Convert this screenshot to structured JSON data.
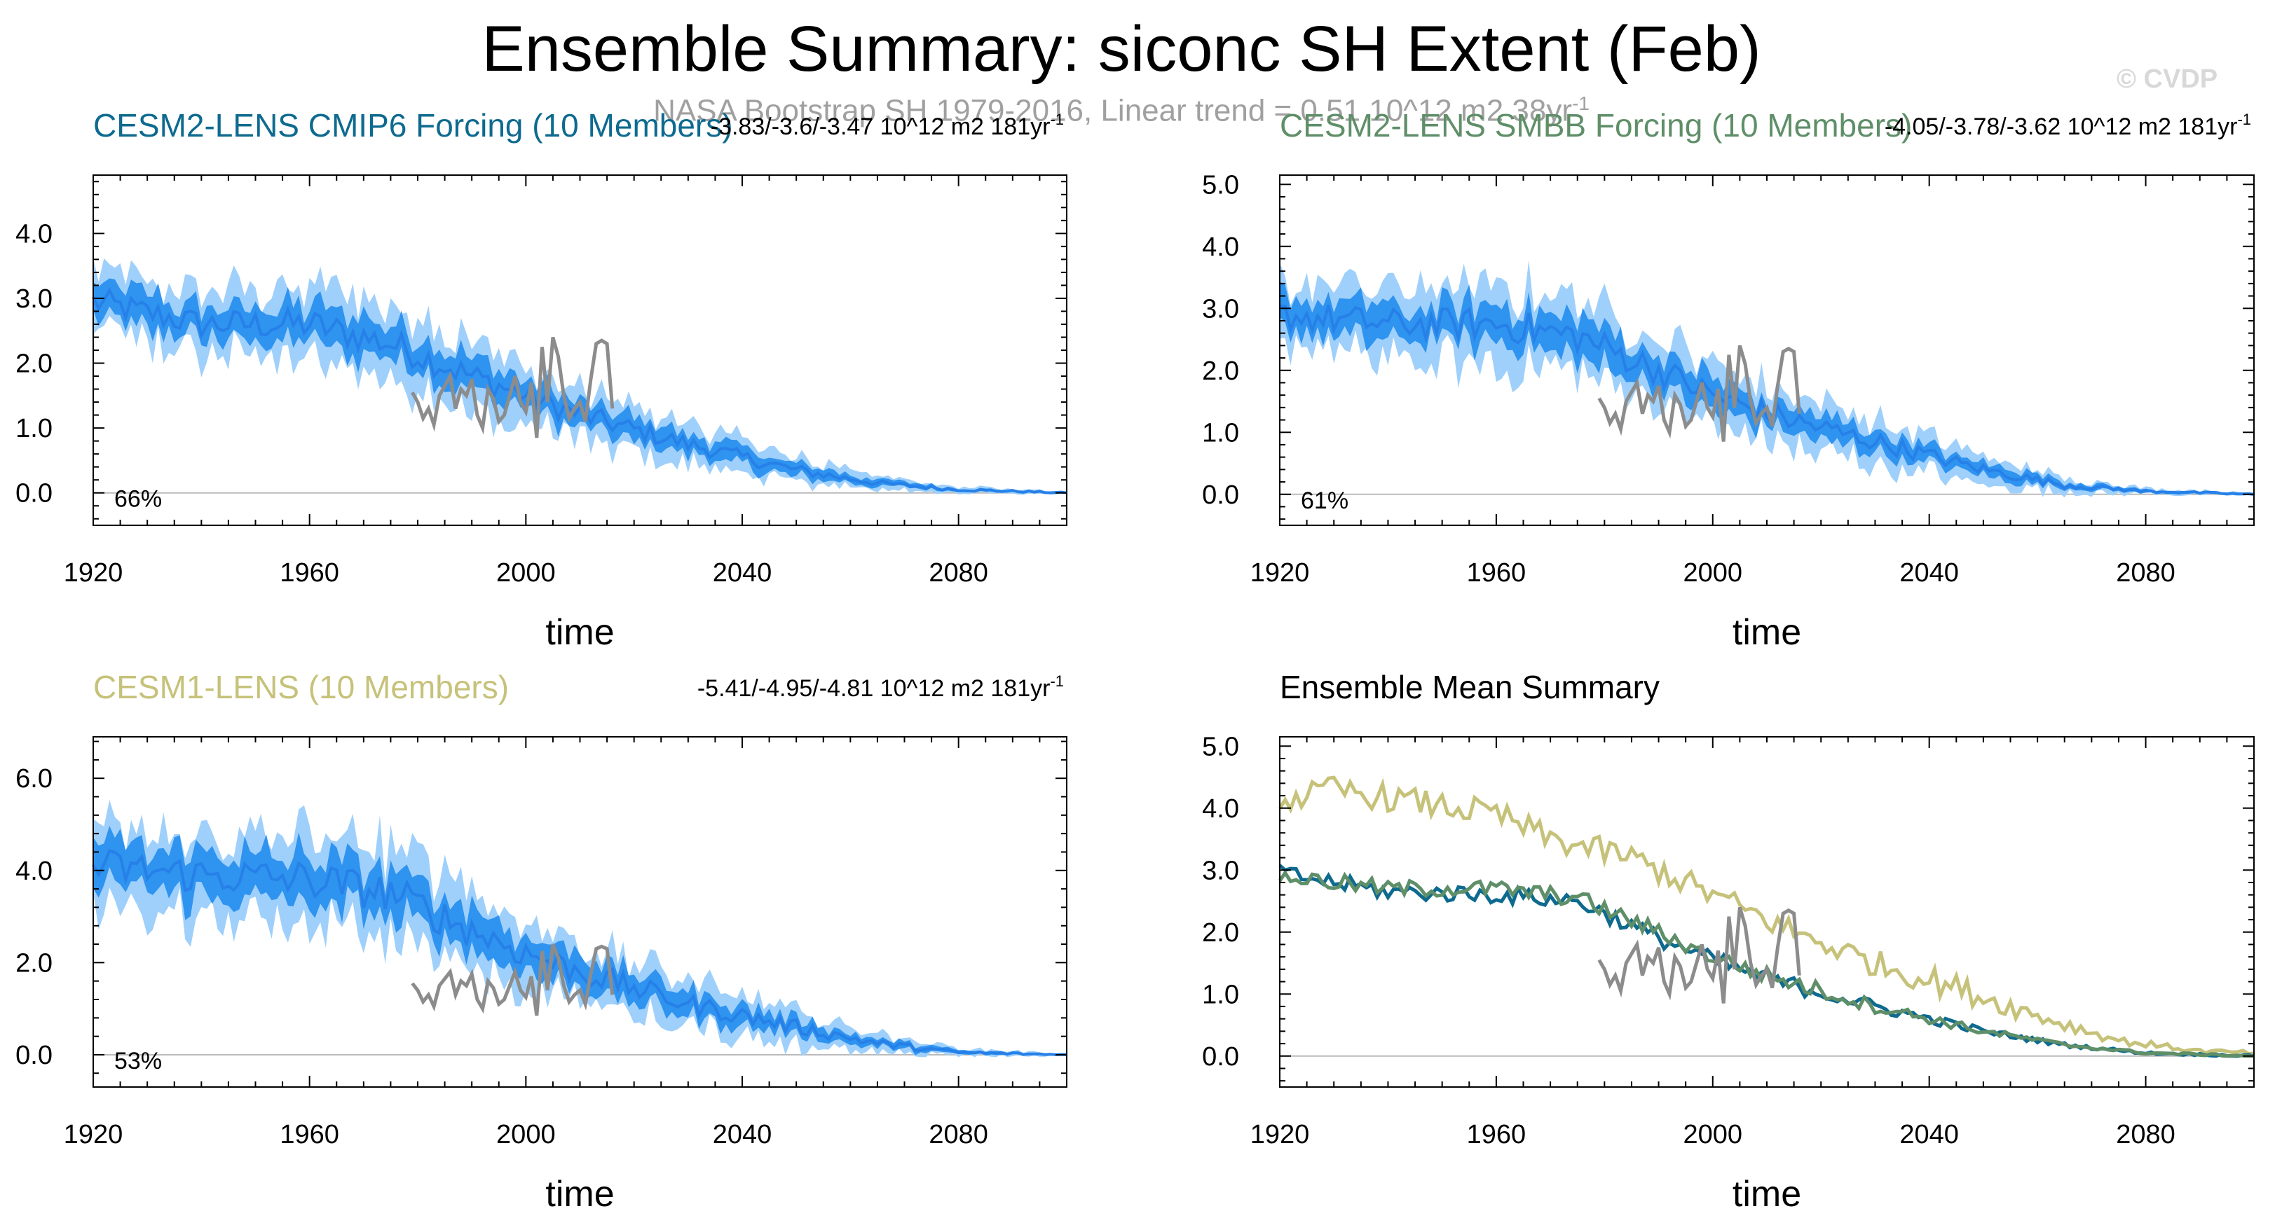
{
  "title": "Ensemble Summary: siconc SH Extent (Feb)",
  "watermark": "© CVDP",
  "observation_subtitle": "NASA Bootstrap SH 1979-2016, Linear trend = 0.51 10^12 m2 38yr",
  "observation_subtitle_exp": "-1",
  "colors": {
    "cmip6_title": "#0e6a8f",
    "smbb_title": "#5f8f68",
    "cesm1_title": "#c6c27a",
    "shade_outer": "#9fd0fb",
    "shade_inner": "#2f93f0",
    "ens_mean_line": "#2680e8",
    "obs_line": "#8c8c8c",
    "mean_cmip6": "#0e6a8f",
    "mean_smbb": "#5f8f68",
    "mean_cesm1": "#c6c27a",
    "zero_line": "#bbbbbb"
  },
  "chart_data": [
    {
      "type": "area",
      "panel": "cmip6",
      "title": "CESM2-LENS CMIP6 Forcing (10 Members)",
      "trend_text": "-3.83/-3.6/-3.47 10^12 m2 181yr",
      "trend_exp": "-1",
      "percent_label": "66%",
      "xlabel": "time",
      "ylabel": "",
      "xlim": [
        1920,
        2100
      ],
      "ylim": [
        -0.5,
        4.9
      ],
      "xticks": [
        1920,
        1960,
        2000,
        2040,
        2080
      ],
      "yticks": [
        0.0,
        1.0,
        2.0,
        3.0,
        4.0
      ],
      "ytick_labels": [
        "0.0",
        "1.0",
        "2.0",
        "3.0",
        "4.0"
      ],
      "ensemble_mean_anchors": {
        "x": [
          1920,
          1940,
          1960,
          1975,
          1990,
          2000,
          2010,
          2030,
          2050,
          2065,
          2080,
          2100
        ],
        "y": [
          2.95,
          2.6,
          2.6,
          2.3,
          1.8,
          1.5,
          1.2,
          0.75,
          0.35,
          0.15,
          0.05,
          0.0
        ]
      },
      "spread_outer_anchors": [
        0.5,
        0.5,
        0.55,
        0.55,
        0.5,
        0.45,
        0.4,
        0.3,
        0.2,
        0.1,
        0.05,
        0.02
      ],
      "spread_inner_anchors": [
        0.25,
        0.25,
        0.27,
        0.27,
        0.25,
        0.22,
        0.2,
        0.15,
        0.1,
        0.05,
        0.025,
        0.01
      ],
      "obs": {
        "name": "NASA Bootstrap",
        "x": [
          1979,
          1980,
          1981,
          1982,
          1983,
          1984,
          1985,
          1986,
          1987,
          1988,
          1989,
          1990,
          1991,
          1992,
          1993,
          1994,
          1995,
          1996,
          1997,
          1998,
          1999,
          2000,
          2001,
          2002,
          2003,
          2004,
          2005,
          2006,
          2007,
          2008,
          2009,
          2010,
          2011,
          2012,
          2013,
          2014,
          2015,
          2016
        ],
        "y": [
          1.55,
          1.4,
          1.15,
          1.3,
          1.05,
          1.5,
          1.65,
          1.8,
          1.3,
          1.6,
          1.5,
          1.75,
          1.2,
          1.0,
          1.6,
          1.45,
          1.1,
          1.2,
          1.5,
          1.8,
          1.4,
          1.25,
          1.7,
          0.85,
          2.25,
          1.4,
          2.4,
          2.1,
          1.5,
          1.15,
          1.3,
          1.4,
          1.1,
          1.75,
          2.3,
          2.35,
          2.3,
          1.3
        ]
      }
    },
    {
      "type": "area",
      "panel": "smbb",
      "title": "CESM2-LENS SMBB Forcing (10 Members)",
      "trend_text": "-4.05/-3.78/-3.62 10^12 m2 181yr",
      "trend_exp": "-1",
      "percent_label": "61%",
      "xlabel": "time",
      "ylabel": "",
      "xlim": [
        1920,
        2100
      ],
      "ylim": [
        -0.5,
        5.15
      ],
      "xticks": [
        1920,
        1960,
        2000,
        2040,
        2080
      ],
      "yticks": [
        0.0,
        1.0,
        2.0,
        3.0,
        4.0,
        5.0
      ],
      "ytick_labels": [
        "0.0",
        "1.0",
        "2.0",
        "3.0",
        "4.0",
        "5.0"
      ],
      "ensemble_mean_anchors": {
        "x": [
          1920,
          1940,
          1960,
          1975,
          1990,
          2000,
          2010,
          2030,
          2050,
          2065,
          2080,
          2100
        ],
        "y": [
          2.9,
          2.75,
          2.75,
          2.55,
          2.0,
          1.6,
          1.3,
          0.85,
          0.4,
          0.15,
          0.05,
          0.0
        ]
      },
      "spread_outer_anchors": [
        0.55,
        0.55,
        0.6,
        0.6,
        0.55,
        0.5,
        0.45,
        0.35,
        0.22,
        0.12,
        0.05,
        0.02
      ],
      "spread_inner_anchors": [
        0.27,
        0.27,
        0.3,
        0.3,
        0.27,
        0.25,
        0.22,
        0.17,
        0.11,
        0.06,
        0.025,
        0.01
      ],
      "obs": {
        "name": "NASA Bootstrap",
        "x": [
          1979,
          1980,
          1981,
          1982,
          1983,
          1984,
          1985,
          1986,
          1987,
          1988,
          1989,
          1990,
          1991,
          1992,
          1993,
          1994,
          1995,
          1996,
          1997,
          1998,
          1999,
          2000,
          2001,
          2002,
          2003,
          2004,
          2005,
          2006,
          2007,
          2008,
          2009,
          2010,
          2011,
          2012,
          2013,
          2014,
          2015,
          2016
        ],
        "y": [
          1.55,
          1.4,
          1.15,
          1.3,
          1.05,
          1.5,
          1.65,
          1.8,
          1.3,
          1.6,
          1.5,
          1.75,
          1.2,
          1.0,
          1.6,
          1.45,
          1.1,
          1.2,
          1.5,
          1.8,
          1.4,
          1.25,
          1.7,
          0.85,
          2.25,
          1.4,
          2.4,
          2.1,
          1.5,
          1.15,
          1.3,
          1.4,
          1.1,
          1.75,
          2.3,
          2.35,
          2.3,
          1.3
        ]
      }
    },
    {
      "type": "area",
      "panel": "cesm1",
      "title": "CESM1-LENS (10 Members)",
      "trend_text": "-5.41/-4.95/-4.81 10^12 m2 181yr",
      "trend_exp": "-1",
      "percent_label": "53%",
      "xlabel": "time",
      "ylabel": "",
      "xlim": [
        1920,
        2100
      ],
      "ylim": [
        -0.7,
        6.9
      ],
      "xticks": [
        1920,
        1960,
        2000,
        2040,
        2080
      ],
      "yticks": [
        0.0,
        2.0,
        4.0,
        6.0
      ],
      "ytick_labels": [
        "0.0",
        "2.0",
        "4.0",
        "6.0"
      ],
      "ensemble_mean_anchors": {
        "x": [
          1920,
          1940,
          1960,
          1975,
          1990,
          2000,
          2010,
          2030,
          2050,
          2065,
          2080,
          2100
        ],
        "y": [
          4.1,
          3.9,
          3.8,
          3.5,
          2.7,
          2.2,
          1.8,
          1.1,
          0.6,
          0.25,
          0.05,
          0.0
        ]
      },
      "spread_outer_anchors": [
        0.9,
        0.9,
        0.95,
        0.95,
        0.85,
        0.75,
        0.65,
        0.5,
        0.35,
        0.2,
        0.08,
        0.03
      ],
      "spread_inner_anchors": [
        0.45,
        0.45,
        0.47,
        0.47,
        0.42,
        0.37,
        0.32,
        0.25,
        0.17,
        0.1,
        0.04,
        0.015
      ],
      "obs": {
        "name": "NASA Bootstrap",
        "x": [
          1979,
          1980,
          1981,
          1982,
          1983,
          1984,
          1985,
          1986,
          1987,
          1988,
          1989,
          1990,
          1991,
          1992,
          1993,
          1994,
          1995,
          1996,
          1997,
          1998,
          1999,
          2000,
          2001,
          2002,
          2003,
          2004,
          2005,
          2006,
          2007,
          2008,
          2009,
          2010,
          2011,
          2012,
          2013,
          2014,
          2015,
          2016
        ],
        "y": [
          1.55,
          1.4,
          1.15,
          1.3,
          1.05,
          1.5,
          1.65,
          1.8,
          1.3,
          1.6,
          1.5,
          1.75,
          1.2,
          1.0,
          1.6,
          1.45,
          1.1,
          1.2,
          1.5,
          1.8,
          1.4,
          1.25,
          1.7,
          0.85,
          2.25,
          1.4,
          2.4,
          2.1,
          1.5,
          1.15,
          1.3,
          1.4,
          1.1,
          1.75,
          2.3,
          2.35,
          2.3,
          1.3
        ]
      }
    },
    {
      "type": "line",
      "panel": "mean_summary",
      "title": "Ensemble Mean Summary",
      "xlabel": "time",
      "ylabel": "",
      "xlim": [
        1920,
        2100
      ],
      "ylim": [
        -0.5,
        5.15
      ],
      "xticks": [
        1920,
        1960,
        2000,
        2040,
        2080
      ],
      "yticks": [
        0.0,
        1.0,
        2.0,
        3.0,
        4.0,
        5.0
      ],
      "ytick_labels": [
        "0.0",
        "1.0",
        "2.0",
        "3.0",
        "4.0",
        "5.0"
      ],
      "series": [
        {
          "name": "CESM1-LENS",
          "color_key": "mean_cesm1",
          "anchors": {
            "x": [
              1920,
              1930,
              1945,
              1960,
              1970,
              1985,
              2000,
              2015,
              2030,
              2045,
              2060,
              2075,
              2090,
              2100
            ],
            "y": [
              4.1,
              4.3,
              4.1,
              3.9,
              3.5,
              3.2,
              2.6,
              2.0,
              1.5,
              1.1,
              0.65,
              0.25,
              0.08,
              0.05
            ]
          },
          "noise": 0.22
        },
        {
          "name": "CESM2-LENS CMIP6 Forcing",
          "color_key": "mean_cmip6",
          "anchors": {
            "x": [
              1920,
              1940,
              1960,
              1975,
              1990,
              2000,
              2010,
              2030,
              2050,
              2065,
              2080,
              2100
            ],
            "y": [
              2.95,
              2.65,
              2.6,
              2.5,
              1.9,
              1.55,
              1.25,
              0.8,
              0.4,
              0.18,
              0.05,
              0.0
            ]
          },
          "noise": 0.14
        },
        {
          "name": "CESM2-LENS SMBB Forcing",
          "color_key": "mean_smbb",
          "anchors": {
            "x": [
              1920,
              1940,
              1960,
              1975,
              1990,
              2000,
              2010,
              2030,
              2050,
              2065,
              2080,
              2100
            ],
            "y": [
              2.9,
              2.7,
              2.7,
              2.55,
              2.0,
              1.6,
              1.3,
              0.8,
              0.4,
              0.18,
              0.05,
              0.0
            ]
          },
          "noise": 0.14
        }
      ],
      "obs": {
        "name": "NASA Bootstrap",
        "x": [
          1979,
          1980,
          1981,
          1982,
          1983,
          1984,
          1985,
          1986,
          1987,
          1988,
          1989,
          1990,
          1991,
          1992,
          1993,
          1994,
          1995,
          1996,
          1997,
          1998,
          1999,
          2000,
          2001,
          2002,
          2003,
          2004,
          2005,
          2006,
          2007,
          2008,
          2009,
          2010,
          2011,
          2012,
          2013,
          2014,
          2015,
          2016
        ],
        "y": [
          1.55,
          1.4,
          1.15,
          1.3,
          1.05,
          1.5,
          1.65,
          1.8,
          1.3,
          1.6,
          1.5,
          1.75,
          1.2,
          1.0,
          1.6,
          1.45,
          1.1,
          1.2,
          1.5,
          1.8,
          1.4,
          1.25,
          1.7,
          0.85,
          2.25,
          1.4,
          2.4,
          2.1,
          1.5,
          1.15,
          1.3,
          1.4,
          1.1,
          1.75,
          2.3,
          2.35,
          2.3,
          1.3
        ]
      }
    }
  ]
}
